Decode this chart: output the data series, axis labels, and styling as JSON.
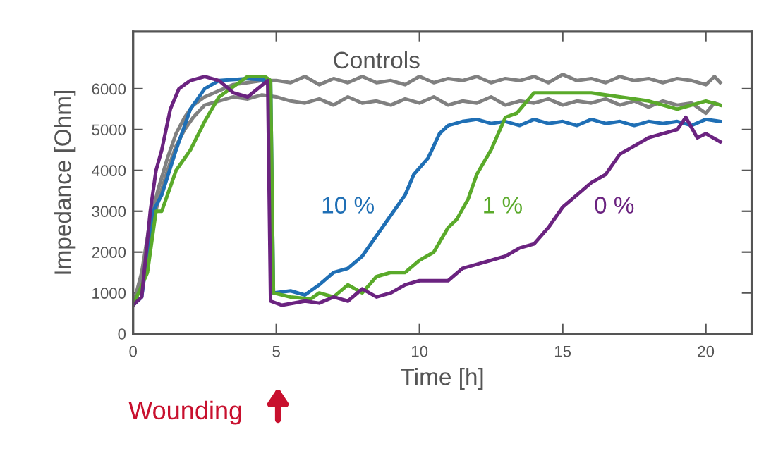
{
  "chart_data": {
    "type": "line",
    "xlabel": "Time [h]",
    "ylabel": "Impedance [Ohm]",
    "xlim": [
      0,
      21.6
    ],
    "ylim": [
      0,
      7400
    ],
    "xticks": [
      0,
      5,
      10,
      15,
      20
    ],
    "yticks": [
      0,
      1000,
      2000,
      3000,
      4000,
      5000,
      6000
    ],
    "grid": false,
    "legend": false,
    "marker": "none",
    "line_style": "solid",
    "annotations": [
      "Wounding"
    ],
    "series": [
      {
        "name": "Controls",
        "color": "#808080",
        "x": [
          0,
          0.3,
          0.6,
          0.9,
          1.2,
          1.5,
          1.8,
          2.1,
          2.5,
          3,
          3.5,
          4,
          4.5,
          5,
          5.5,
          6,
          6.5,
          7,
          7.5,
          8,
          8.5,
          9,
          9.5,
          10,
          10.5,
          11,
          11.5,
          12,
          12.5,
          13,
          13.5,
          14,
          14.5,
          15,
          15.5,
          16,
          16.5,
          17,
          17.5,
          18,
          18.5,
          19,
          19.5,
          20,
          20.3,
          20.5
        ],
        "values": [
          700,
          1500,
          2800,
          3600,
          4300,
          4900,
          5300,
          5600,
          5800,
          5950,
          6100,
          6150,
          6200,
          6200,
          6150,
          6300,
          6100,
          6250,
          6150,
          6300,
          6150,
          6200,
          6100,
          6300,
          6150,
          6250,
          6200,
          6300,
          6150,
          6250,
          6200,
          6300,
          6150,
          6350,
          6200,
          6250,
          6150,
          6300,
          6200,
          6250,
          6150,
          6250,
          6200,
          6100,
          6300,
          6150
        ]
      },
      {
        "color": "#808080",
        "x": [
          0,
          0.3,
          0.6,
          0.9,
          1.2,
          1.5,
          1.8,
          2.1,
          2.5,
          3,
          3.5,
          4,
          4.5,
          5,
          5.5,
          6,
          6.5,
          7,
          7.5,
          8,
          8.5,
          9,
          9.5,
          10,
          10.5,
          11,
          11.5,
          12,
          12.5,
          13,
          13.5,
          14,
          14.5,
          15,
          15.5,
          16,
          16.5,
          17,
          17.5,
          18,
          18.5,
          19,
          19.5,
          20,
          20.3,
          20.5
        ],
        "values": [
          700,
          1300,
          2500,
          3300,
          4000,
          4600,
          5000,
          5300,
          5600,
          5700,
          5800,
          5750,
          5850,
          5800,
          5700,
          5650,
          5750,
          5600,
          5800,
          5650,
          5700,
          5600,
          5750,
          5650,
          5800,
          5600,
          5700,
          5650,
          5800,
          5600,
          5700,
          5650,
          5750,
          5600,
          5700,
          5650,
          5750,
          5600,
          5700,
          5550,
          5700,
          5600,
          5650,
          5400,
          5650,
          5600
        ]
      },
      {
        "name": "10 %",
        "color": "#1f6fb5",
        "x": [
          0,
          0.3,
          0.7,
          1,
          1.5,
          2,
          2.5,
          3,
          4,
          4.8,
          4.9,
          5.5,
          6,
          6.5,
          7,
          7.5,
          8,
          8.5,
          9,
          9.5,
          9.8,
          10.3,
          10.7,
          11,
          11.5,
          12,
          12.5,
          13,
          13.5,
          14,
          14.5,
          15,
          15.5,
          16,
          16.5,
          17,
          17.5,
          18,
          18.5,
          19,
          19.5,
          20,
          20.5
        ],
        "values": [
          700,
          900,
          3000,
          3400,
          4500,
          5500,
          6000,
          6200,
          6250,
          6200,
          1000,
          1050,
          950,
          1200,
          1500,
          1600,
          1900,
          2400,
          2900,
          3400,
          3900,
          4300,
          4900,
          5100,
          5200,
          5250,
          5150,
          5200,
          5100,
          5250,
          5150,
          5200,
          5100,
          5250,
          5150,
          5200,
          5100,
          5200,
          5150,
          5200,
          5100,
          5250,
          5200
        ]
      },
      {
        "name": "1 %",
        "color": "#5aaa2a",
        "x": [
          0,
          0.5,
          0.8,
          1,
          1.5,
          2,
          2.5,
          3,
          4,
          4.6,
          4.8,
          4.9,
          5.5,
          6.2,
          6.5,
          7,
          7.5,
          8,
          8.5,
          9,
          9.5,
          10,
          10.5,
          11,
          11.3,
          11.7,
          12,
          12.5,
          13,
          13.4,
          14,
          15,
          16,
          17,
          18,
          19,
          20,
          20.5
        ],
        "values": [
          700,
          1500,
          3000,
          3000,
          4000,
          4500,
          5200,
          5800,
          6300,
          6300,
          6200,
          1000,
          900,
          850,
          1000,
          900,
          1200,
          1000,
          1400,
          1500,
          1500,
          1800,
          2000,
          2600,
          2800,
          3300,
          3900,
          4500,
          5300,
          5400,
          5900,
          5900,
          5900,
          5800,
          5700,
          5500,
          5700,
          5600
        ]
      },
      {
        "name": "0 %",
        "color": "#6b2380",
        "x": [
          0,
          0.3,
          0.6,
          0.8,
          1,
          1.3,
          1.6,
          2,
          2.5,
          3,
          3.5,
          4,
          4.7,
          4.8,
          5.2,
          6,
          6.5,
          7,
          7.5,
          8,
          8.5,
          9,
          9.5,
          10,
          11,
          11.5,
          12,
          13,
          13.5,
          14,
          14.5,
          15,
          15.5,
          16,
          16.5,
          17,
          17.5,
          18,
          19,
          19.3,
          19.7,
          20,
          20.5
        ],
        "values": [
          700,
          900,
          3000,
          4000,
          4500,
          5500,
          6000,
          6200,
          6300,
          6200,
          5900,
          5800,
          6200,
          800,
          700,
          800,
          750,
          900,
          800,
          1100,
          900,
          1000,
          1200,
          1300,
          1300,
          1600,
          1700,
          1900,
          2100,
          2200,
          2600,
          3100,
          3400,
          3700,
          3900,
          4400,
          4600,
          4800,
          5000,
          5300,
          4800,
          4900,
          4700
        ]
      }
    ]
  }
}
